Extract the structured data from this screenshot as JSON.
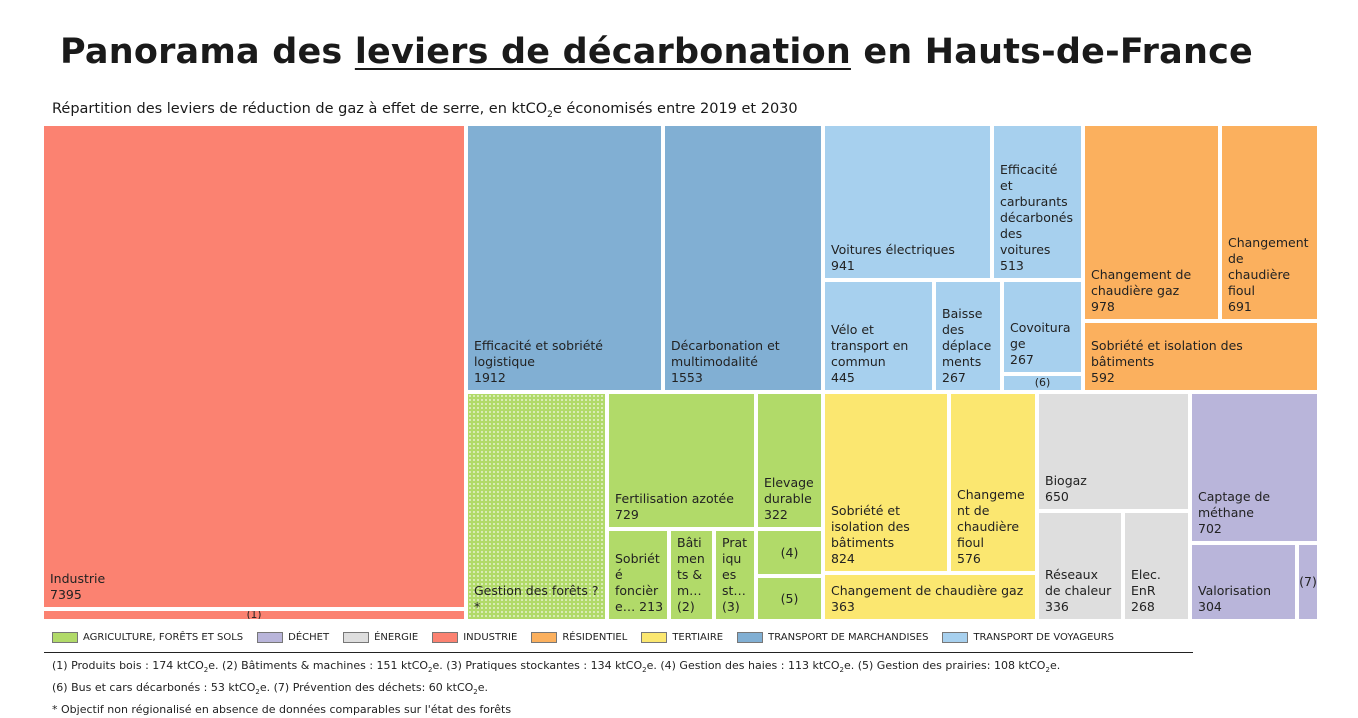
{
  "title": {
    "part1": "Panorama des ",
    "part2": "leviers de décarbonation",
    "part3": " en Hauts-de-France"
  },
  "subtitle": {
    "before": "Répartition des leviers de réduction de gaz à effet de serre, en ktCO",
    "sub": "2",
    "after": "e économisés entre 2019 et 2030"
  },
  "legend": [
    {
      "label": "AGRICULTURE, FORÊTS ET SOLS",
      "color": "#B1DA69"
    },
    {
      "label": "DÉCHET",
      "color": "#B9B5DA"
    },
    {
      "label": "ÉNERGIE",
      "color": "#DEDEDE"
    },
    {
      "label": "INDUSTRIE",
      "color": "#FB8271"
    },
    {
      "label": "RÉSIDENTIEL",
      "color": "#FBB05E"
    },
    {
      "label": "TERTIAIRE",
      "color": "#FBE770"
    },
    {
      "label": "TRANSPORT DE MARCHANDISES",
      "color": "#81AFD3"
    },
    {
      "label": "TRANSPORT DE VOYAGEURS",
      "color": "#A7D0EE"
    }
  ],
  "notes": [
    [
      {
        "t": "(1) Produits bois : 174 ktCO"
      },
      {
        "s": "2"
      },
      {
        "t": "e. (2) Bâtiments & machines : 151 ktCO"
      },
      {
        "s": "2"
      },
      {
        "t": "e. (3) Pratiques stockantes : 134 ktCO"
      },
      {
        "s": "2"
      },
      {
        "t": "e. (4) Gestion des haies : 113 ktCO"
      },
      {
        "s": "2"
      },
      {
        "t": "e. (5) Gestion des prairies: 108 ktCO"
      },
      {
        "s": "2"
      },
      {
        "t": "e."
      }
    ],
    [
      {
        "t": "(6) Bus et cars décarbonés : 53 ktCO"
      },
      {
        "s": "2"
      },
      {
        "t": "e. (7) Prévention des déchets: 60 ktCO"
      },
      {
        "s": "2"
      },
      {
        "t": "e."
      }
    ],
    [
      {
        "t": "* Objectif non régionalisé en absence de données comparables sur l'état des forêts"
      }
    ]
  ],
  "chart_data": {
    "type": "treemap",
    "unit": "ktCO2e",
    "items": [
      {
        "label": "Industrie",
        "value": 7395,
        "category": "INDUSTRIE"
      },
      {
        "label": "(1)",
        "value": 174,
        "category": "INDUSTRIE",
        "note": "Produits bois"
      },
      {
        "label": "Efficacité et sobriété logistique",
        "value": 1912,
        "category": "TRANSPORT DE MARCHANDISES"
      },
      {
        "label": "Décarbonation et multimodalité",
        "value": 1553,
        "category": "TRANSPORT DE MARCHANDISES"
      },
      {
        "label": "Voitures électriques",
        "value": 941,
        "category": "TRANSPORT DE VOYAGEURS"
      },
      {
        "label": "Efficacité et carburants décarbonés des voitures",
        "value": 513,
        "category": "TRANSPORT DE VOYAGEURS"
      },
      {
        "label": "Vélo et transport en commun",
        "value": 445,
        "category": "TRANSPORT DE VOYAGEURS"
      },
      {
        "label": "Baisse des déplacements",
        "value": 267,
        "category": "TRANSPORT DE VOYAGEURS"
      },
      {
        "label": "Covoiturage",
        "value": 267,
        "category": "TRANSPORT DE VOYAGEURS"
      },
      {
        "label": "(6)",
        "value": 53,
        "category": "TRANSPORT DE VOYAGEURS",
        "note": "Bus et cars décarbonés"
      },
      {
        "label": "Changement de chaudière gaz",
        "value": 978,
        "category": "RÉSIDENTIEL"
      },
      {
        "label": "Changement de chaudière fioul",
        "value": 691,
        "category": "RÉSIDENTIEL"
      },
      {
        "label": "Sobriété et isolation des bâtiments",
        "value": 592,
        "category": "RÉSIDENTIEL"
      },
      {
        "label": "Gestion des forêts",
        "value": null,
        "category": "AGRICULTURE, FORÊTS ET SOLS",
        "note": "?*"
      },
      {
        "label": "Fertilisation azotée",
        "value": 729,
        "category": "AGRICULTURE, FORÊTS ET SOLS"
      },
      {
        "label": "Elevage durable",
        "value": 322,
        "category": "AGRICULTURE, FORÊTS ET SOLS"
      },
      {
        "label": "Sobriété foncière",
        "value": 213,
        "category": "AGRICULTURE, FORÊTS ET SOLS"
      },
      {
        "label": "(2)",
        "value": 151,
        "category": "AGRICULTURE, FORÊTS ET SOLS",
        "note": "Bâtiments & machines"
      },
      {
        "label": "(3)",
        "value": 134,
        "category": "AGRICULTURE, FORÊTS ET SOLS",
        "note": "Pratiques stockantes"
      },
      {
        "label": "(4)",
        "value": 113,
        "category": "AGRICULTURE, FORÊTS ET SOLS",
        "note": "Gestion des haies"
      },
      {
        "label": "(5)",
        "value": 108,
        "category": "AGRICULTURE, FORÊTS ET SOLS",
        "note": "Gestion des prairies"
      },
      {
        "label": "Sobriété et isolation des bâtiments",
        "value": 824,
        "category": "TERTIAIRE"
      },
      {
        "label": "Changement de chaudière fioul",
        "value": 576,
        "category": "TERTIAIRE"
      },
      {
        "label": "Changement de chaudière gaz",
        "value": 363,
        "category": "TERTIAIRE"
      },
      {
        "label": "Biogaz",
        "value": 650,
        "category": "ÉNERGIE"
      },
      {
        "label": "Réseaux de chaleur",
        "value": 336,
        "category": "ÉNERGIE"
      },
      {
        "label": "Elec. EnR",
        "value": 268,
        "category": "ÉNERGIE"
      },
      {
        "label": "Captage de méthane",
        "value": 702,
        "category": "DÉCHET"
      },
      {
        "label": "Valorisation",
        "value": 304,
        "category": "DÉCHET"
      },
      {
        "label": "(7)",
        "value": 60,
        "category": "DÉCHET",
        "note": "Prévention des déchets"
      }
    ],
    "cells": [
      {
        "name": "industrie",
        "label": "Industrie",
        "value": "7395"
      },
      {
        "name": "produits-bois",
        "label": "(1)",
        "value": "",
        "center": true
      },
      {
        "name": "efficacite-sobriete-logistique",
        "label": "Efficacité et sobriété\nlogistique",
        "value": "1912"
      },
      {
        "name": "decarbonation-multimodalite",
        "label": "Décarbonation et\nmultimodalité",
        "value": "1553"
      },
      {
        "name": "voitures-electriques",
        "label": "Voitures électriques",
        "value": "941"
      },
      {
        "name": "efficacite-carburants-voitures",
        "label": "Efficacité\net\ncarburants\ndécarbonés\ndes\nvoitures",
        "value": "513"
      },
      {
        "name": "velo-transport-commun",
        "label": "Vélo et\ntransport en\ncommun",
        "value": "445"
      },
      {
        "name": "baisse-deplacements",
        "label": "Baisse\ndes\ndéplace\nments",
        "value": "267"
      },
      {
        "name": "covoiturage",
        "label": "Covoitura\nge",
        "value": "267"
      },
      {
        "name": "bus-cars",
        "label": "(6)",
        "value": "",
        "center": true
      },
      {
        "name": "res-chaudiere-gaz",
        "label": "Changement de\nchaudière  gaz",
        "value": "978"
      },
      {
        "name": "res-chaudiere-fioul",
        "label": "Changement\nde\nchaudière\nfioul",
        "value": "691"
      },
      {
        "name": "res-sobriete-isolation",
        "label": "Sobriété et isolation des\nbâtiments",
        "value": "592"
      },
      {
        "name": "gestion-forets",
        "label": "Gestion des forêts ?*",
        "value": "",
        "dotted": true
      },
      {
        "name": "fertilisation-azotee",
        "label": "Fertilisation azotée",
        "value": "729"
      },
      {
        "name": "elevage-durable",
        "label": "Elevage\ndurable",
        "value": "322"
      },
      {
        "name": "gestion-haies",
        "label": "(4)",
        "value": "",
        "center": true
      },
      {
        "name": "sobriete-fonciere",
        "label": "Sobriét\né\nfoncièr\ne…   213",
        "value": ""
      },
      {
        "name": "batiments-machines",
        "label": "Bâti\nmen\nts &\nm…(2)",
        "value": ""
      },
      {
        "name": "pratiques-stockantes",
        "label": "Prat\niqu\nes\nst…(3)",
        "value": ""
      },
      {
        "name": "gestion-prairies",
        "label": "(5)",
        "value": "",
        "center": true
      },
      {
        "name": "ter-sobriete-isolation",
        "label": "Sobriété et\nisolation des\nbâtiments",
        "value": "824"
      },
      {
        "name": "ter-chaudiere-fioul",
        "label": "Changeme\nnt de\nchaudière\nfioul",
        "value": "576"
      },
      {
        "name": "ter-chaudiere-gaz",
        "label": "Changement de chaudière gaz",
        "value": "363"
      },
      {
        "name": "biogaz",
        "label": "Biogaz",
        "value": "650"
      },
      {
        "name": "reseaux-chaleur",
        "label": "Réseaux\nde chaleur",
        "value": "336"
      },
      {
        "name": "elec-enr",
        "label": "Elec.\nEnR",
        "value": "268"
      },
      {
        "name": "captage-methane",
        "label": "Captage de\nméthane",
        "value": "702"
      },
      {
        "name": "valorisation",
        "label": "Valorisation",
        "value": "304"
      },
      {
        "name": "prevention-dechets",
        "label": "(7)",
        "value": "",
        "center": true
      }
    ]
  }
}
